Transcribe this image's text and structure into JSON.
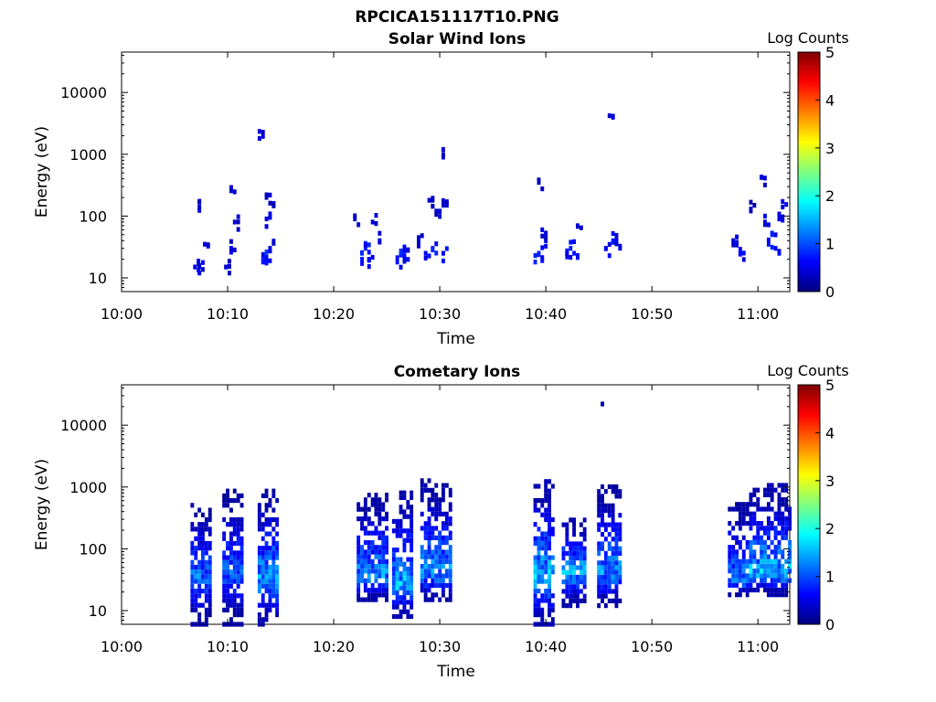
{
  "figure_title": "RPCICA151117T10.PNG",
  "colorbar": {
    "label": "Log Counts",
    "ticks": [
      "0",
      "1",
      "2",
      "3",
      "4",
      "5"
    ],
    "range": [
      0,
      5
    ],
    "colormap": "jet",
    "colors": [
      "#00007f",
      "#0000ff",
      "#007fff",
      "#00ffff",
      "#7fff7f",
      "#ffff00",
      "#ff7f00",
      "#ff0000",
      "#7f0000"
    ]
  },
  "chart_data": [
    {
      "type": "heatmap",
      "title": "Solar Wind Ions",
      "xlabel": "Time",
      "ylabel": "Energy (eV)",
      "x_tick_labels": [
        "10:00",
        "10:10",
        "10:20",
        "10:30",
        "10:40",
        "10:50",
        "11:00"
      ],
      "y_tick_labels": [
        "10",
        "100",
        "1000",
        "10000"
      ],
      "xlim": [
        "10:00",
        "11:03"
      ],
      "ylim": [
        6,
        45000
      ],
      "y_scale": "log",
      "cells": [
        [
          "10:06:45",
          15,
          0.5
        ],
        [
          "10:07:10",
          15,
          0.5
        ],
        [
          "10:07:10",
          140,
          0.4
        ],
        [
          "10:07:40",
          35,
          0.5
        ],
        [
          "10:09:40",
          15,
          0.4
        ],
        [
          "10:10:10",
          30,
          0.5
        ],
        [
          "10:10:10",
          290,
          0.4
        ],
        [
          "10:10:30",
          80,
          0.4
        ],
        [
          "10:12:50",
          1800,
          0.5
        ],
        [
          "10:13:10",
          18,
          0.7
        ],
        [
          "10:13:30",
          22,
          0.8
        ],
        [
          "10:13:30",
          90,
          0.5
        ],
        [
          "10:13:30",
          200,
          0.4
        ],
        [
          "10:13:50",
          30,
          0.5
        ],
        [
          "10:14:10",
          160,
          0.4
        ],
        [
          "10:21:50",
          90,
          0.4
        ],
        [
          "10:22:30",
          20,
          0.7
        ],
        [
          "10:22:50",
          30,
          0.8
        ],
        [
          "10:23:10",
          20,
          0.6
        ],
        [
          "10:23:30",
          80,
          0.4
        ],
        [
          "10:24:10",
          40,
          0.4
        ],
        [
          "10:25:50",
          18,
          0.7
        ],
        [
          "10:26:10",
          25,
          0.8
        ],
        [
          "10:26:30",
          22,
          0.6
        ],
        [
          "10:27:50",
          40,
          0.4
        ],
        [
          "10:28:30",
          25,
          0.6
        ],
        [
          "10:28:50",
          180,
          0.4
        ],
        [
          "10:29:10",
          30,
          0.7
        ],
        [
          "10:29:30",
          120,
          0.4
        ],
        [
          "10:30:10",
          25,
          0.6
        ],
        [
          "10:30:10",
          150,
          0.4
        ],
        [
          "10:30:10",
          900,
          0.4
        ],
        [
          "10:38:50",
          18,
          0.8
        ],
        [
          "10:39:10",
          25,
          0.8
        ],
        [
          "10:39:10",
          350,
          0.4
        ],
        [
          "10:39:30",
          60,
          0.5
        ],
        [
          "10:39:50",
          40,
          0.5
        ],
        [
          "10:41:50",
          25,
          0.7
        ],
        [
          "10:42:10",
          30,
          0.8
        ],
        [
          "10:42:30",
          25,
          0.7
        ],
        [
          "10:42:50",
          70,
          0.4
        ],
        [
          "10:45:30",
          30,
          0.6
        ],
        [
          "10:45:50",
          4200,
          0.4
        ],
        [
          "10:46:10",
          40,
          0.7
        ],
        [
          "10:46:30",
          40,
          0.6
        ],
        [
          "10:57:30",
          40,
          0.5
        ],
        [
          "10:58:10",
          25,
          0.6
        ],
        [
          "10:59:10",
          130,
          0.4
        ],
        [
          "11:00:10",
          420,
          0.4
        ],
        [
          "11:00:30",
          80,
          0.5
        ],
        [
          "11:00:50",
          35,
          0.7
        ],
        [
          "11:01:10",
          50,
          0.8
        ],
        [
          "11:01:30",
          30,
          0.6
        ],
        [
          "11:01:50",
          90,
          0.5
        ],
        [
          "11:02:10",
          140,
          0.5
        ]
      ]
    },
    {
      "type": "heatmap",
      "title": "Cometary Ions",
      "xlabel": "Time",
      "ylabel": "Energy (eV)",
      "x_tick_labels": [
        "10:00",
        "10:10",
        "10:20",
        "10:30",
        "10:40",
        "10:50",
        "11:00"
      ],
      "y_tick_labels": [
        "10",
        "100",
        "1000",
        "10000"
      ],
      "xlim": [
        "10:00",
        "11:03"
      ],
      "ylim": [
        6,
        45000
      ],
      "y_scale": "log",
      "bursts": [
        {
          "start": "10:06:30",
          "end": "10:08:10",
          "peak_energy": 35,
          "max_energy": 550,
          "min_energy": 6,
          "peak_level": 1.3
        },
        {
          "start": "10:09:30",
          "end": "10:11:20",
          "peak_energy": 40,
          "max_energy": 900,
          "min_energy": 6,
          "peak_level": 1.2
        },
        {
          "start": "10:12:50",
          "end": "10:14:30",
          "peak_energy": 30,
          "max_energy": 950,
          "min_energy": 6,
          "peak_level": 1.6
        },
        {
          "start": "10:22:10",
          "end": "10:24:50",
          "peak_energy": 35,
          "max_energy": 800,
          "min_energy": 15,
          "peak_level": 1.5
        },
        {
          "start": "10:25:30",
          "end": "10:27:10",
          "peak_energy": 25,
          "max_energy": 900,
          "min_energy": 8,
          "peak_level": 1.7
        },
        {
          "start": "10:28:10",
          "end": "10:30:50",
          "peak_energy": 40,
          "max_energy": 1300,
          "min_energy": 15,
          "peak_level": 1.5
        },
        {
          "start": "10:38:50",
          "end": "10:40:40",
          "peak_energy": 35,
          "max_energy": 1300,
          "min_energy": 6,
          "peak_level": 1.7
        },
        {
          "start": "10:41:30",
          "end": "10:43:30",
          "peak_energy": 40,
          "max_energy": 300,
          "min_energy": 12,
          "peak_level": 1.6
        },
        {
          "start": "10:44:50",
          "end": "10:46:50",
          "peak_energy": 40,
          "max_energy": 1100,
          "min_energy": 12,
          "peak_level": 1.5
        },
        {
          "start": "10:57:10",
          "end": "10:58:50",
          "peak_energy": 30,
          "max_energy": 550,
          "min_energy": 18,
          "peak_level": 1.4
        },
        {
          "start": "10:59:10",
          "end": "11:02:50",
          "peak_energy": 40,
          "max_energy": 1100,
          "min_energy": 18,
          "peak_level": 1.7
        }
      ],
      "isolated": [
        [
          "10:45:10",
          22000,
          0.3
        ]
      ]
    }
  ]
}
